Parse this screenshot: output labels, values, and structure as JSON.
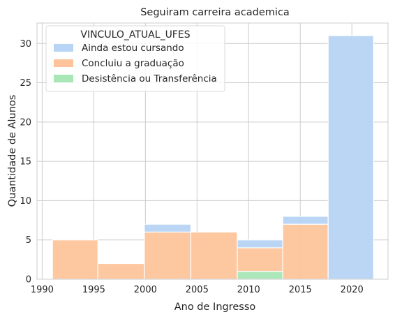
{
  "chart_data": {
    "type": "bar",
    "subtype": "stacked-histogram",
    "title": "Seguiram carreira academica",
    "xlabel": "Ano de Ingresso",
    "ylabel": "Quantidade de Alunos",
    "xlim": [
      1989.5,
      2023.5
    ],
    "ylim": [
      0,
      32.6
    ],
    "x_ticks": [
      1990,
      1995,
      2000,
      2005,
      2010,
      2015,
      2020
    ],
    "y_ticks": [
      0,
      5,
      10,
      15,
      20,
      25,
      30
    ],
    "grid": true,
    "bins": [
      [
        1991,
        1995.4
      ],
      [
        1995.4,
        1999.9
      ],
      [
        1999.9,
        2004.4
      ],
      [
        2004.4,
        2008.9
      ],
      [
        2008.9,
        2013.3
      ],
      [
        2013.3,
        2017.7
      ],
      [
        2017.7,
        2022.1
      ]
    ],
    "legend": {
      "title": "VINCULO_ATUAL_UFES",
      "placement": "top-left"
    },
    "series": [
      {
        "name": "Ainda estou cursando",
        "color": "#b7d4f4",
        "values": [
          0,
          0,
          1,
          0,
          1,
          1,
          31
        ]
      },
      {
        "name": "Concluiu a graduação",
        "color": "#fdc49b",
        "values": [
          5,
          2,
          6,
          6,
          3,
          7,
          0
        ]
      },
      {
        "name": "Desistência ou Transferência",
        "color": "#a8e6b6",
        "values": [
          0,
          0,
          0,
          0,
          1,
          0,
          0
        ]
      }
    ]
  }
}
